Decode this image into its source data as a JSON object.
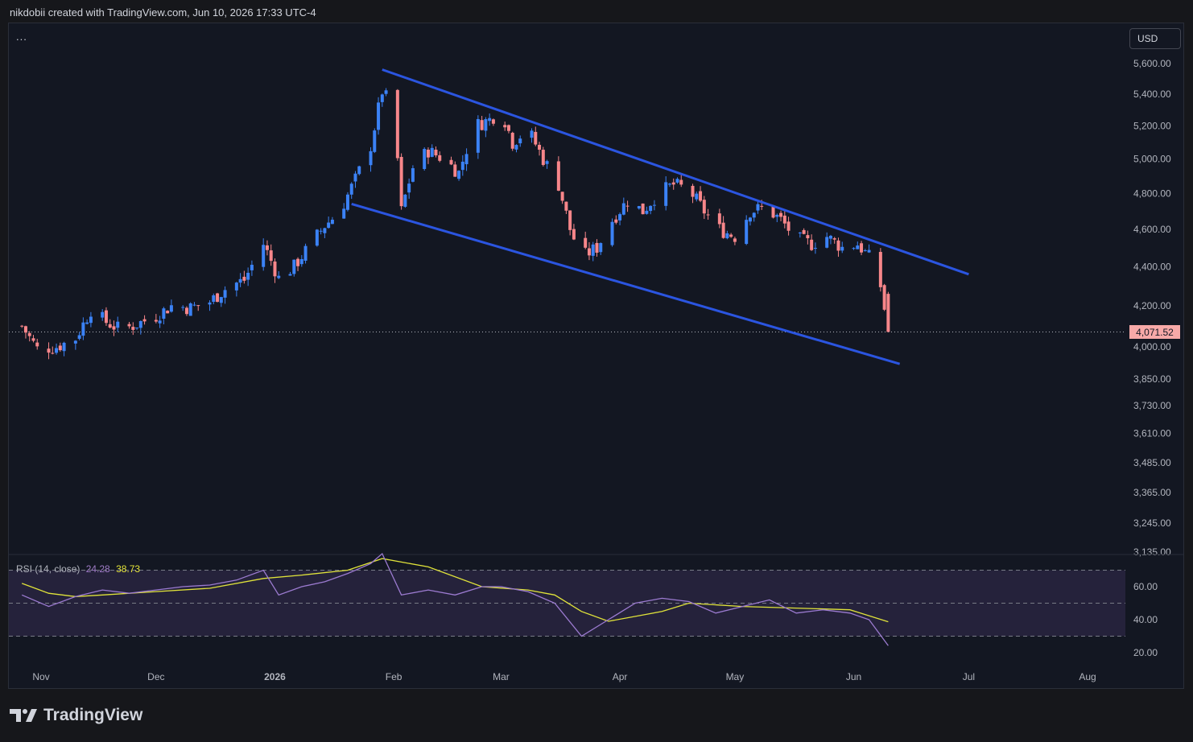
{
  "header": {
    "attribution": "nikdobii created with TradingView.com, Jun 10, 2026 17:33 UTC-4"
  },
  "toolbar": {
    "menu_label": "...",
    "currency_label": "USD"
  },
  "price_badge": {
    "value_label": "4,071.52"
  },
  "rsi_panel": {
    "name": "RSI (14, close)",
    "rsi_value": "24.28",
    "ma_value": "38.73"
  },
  "footer": {
    "brand": "TradingView"
  },
  "colors": {
    "background": "#131722",
    "up_candle": "#3b82f6",
    "down_candle": "#f7868a",
    "channel_line": "#2b55e0",
    "rsi_line": "#9c7bd1",
    "rsi_ma_line": "#e0e33a",
    "rsi_band": "#2a2542"
  },
  "chart_data": {
    "type": "candlestick",
    "price_axis": {
      "ticks": [
        5600,
        5400,
        5200,
        5000,
        4800,
        4600,
        4400,
        4200,
        4000,
        3850,
        3730,
        3610,
        3485,
        3365,
        3245,
        3135
      ],
      "tick_labels": [
        "5,600.00",
        "5,400.00",
        "5,200.00",
        "5,000.00",
        "4,800.00",
        "4,600.00",
        "4,400.00",
        "4,200.00",
        "4,000.00",
        "3,850.00",
        "3,730.00",
        "3,610.00",
        "3,485.00",
        "3,365.00",
        "3,245.00",
        "3,135.00"
      ],
      "scale": "log"
    },
    "time_axis": {
      "labels": [
        "Nov",
        "Dec",
        "2026",
        "Feb",
        "Mar",
        "Apr",
        "May",
        "Jun",
        "Jul",
        "Aug"
      ],
      "dates": [
        "2025-11-01",
        "2025-12-01",
        "2026-01-01",
        "2026-02-01",
        "2026-03-01",
        "2026-04-01",
        "2026-05-01",
        "2026-06-01",
        "2026-07-01",
        "2026-08-01"
      ]
    },
    "last_price": 4071.52,
    "close_path": [
      [
        "2025-10-27",
        4100
      ],
      [
        "2025-10-31",
        3990
      ],
      [
        "2025-11-05",
        4000
      ],
      [
        "2025-11-10",
        4040
      ],
      [
        "2025-11-14",
        4180
      ],
      [
        "2025-11-18",
        4120
      ],
      [
        "2025-11-22",
        4080
      ],
      [
        "2025-11-26",
        4110
      ],
      [
        "2025-12-01",
        4150
      ],
      [
        "2025-12-05",
        4200
      ],
      [
        "2025-12-10",
        4190
      ],
      [
        "2025-12-15",
        4220
      ],
      [
        "2025-12-20",
        4300
      ],
      [
        "2025-12-24",
        4330
      ],
      [
        "2025-12-29",
        4520
      ],
      [
        "2026-01-02",
        4340
      ],
      [
        "2026-01-06",
        4400
      ],
      [
        "2026-01-10",
        4510
      ],
      [
        "2026-01-14",
        4620
      ],
      [
        "2026-01-18",
        4700
      ],
      [
        "2026-01-22",
        4880
      ],
      [
        "2026-01-26",
        5080
      ],
      [
        "2026-01-29",
        5420
      ],
      [
        "2026-02-01",
        5300
      ],
      [
        "2026-02-03",
        4700
      ],
      [
        "2026-02-06",
        4950
      ],
      [
        "2026-02-10",
        5050
      ],
      [
        "2026-02-14",
        5000
      ],
      [
        "2026-02-18",
        4920
      ],
      [
        "2026-02-22",
        5200
      ],
      [
        "2026-02-26",
        5240
      ],
      [
        "2026-03-01",
        5300
      ],
      [
        "2026-03-04",
        5100
      ],
      [
        "2026-03-08",
        5180
      ],
      [
        "2026-03-12",
        5000
      ],
      [
        "2026-03-16",
        4850
      ],
      [
        "2026-03-19",
        4600
      ],
      [
        "2026-03-22",
        4450
      ],
      [
        "2026-03-26",
        4500
      ],
      [
        "2026-03-30",
        4650
      ],
      [
        "2026-04-03",
        4760
      ],
      [
        "2026-04-07",
        4700
      ],
      [
        "2026-04-11",
        4800
      ],
      [
        "2026-04-15",
        4850
      ],
      [
        "2026-04-19",
        4820
      ],
      [
        "2026-04-23",
        4700
      ],
      [
        "2026-04-27",
        4600
      ],
      [
        "2026-05-01",
        4560
      ],
      [
        "2026-05-05",
        4700
      ],
      [
        "2026-05-09",
        4720
      ],
      [
        "2026-05-13",
        4650
      ],
      [
        "2026-05-17",
        4550
      ],
      [
        "2026-05-21",
        4520
      ],
      [
        "2026-05-25",
        4560
      ],
      [
        "2026-05-29",
        4500
      ],
      [
        "2026-06-02",
        4520
      ],
      [
        "2026-06-05",
        4450
      ],
      [
        "2026-06-08",
        4300
      ],
      [
        "2026-06-10",
        4071.52
      ]
    ],
    "annotations": {
      "channel_upper": [
        [
          "2026-01-29",
          5560
        ],
        [
          "2026-07-01",
          4360
        ]
      ],
      "channel_lower": [
        [
          "2026-01-21",
          4740
        ],
        [
          "2026-06-13",
          3920
        ]
      ]
    },
    "rsi": {
      "name": "RSI (14, close)",
      "value": 24.28,
      "ma_value": 38.73,
      "axis_ticks": [
        60,
        40,
        20
      ],
      "axis_tick_labels": [
        "60.00",
        "40.00",
        "20.00"
      ],
      "bands": [
        70,
        50,
        30
      ],
      "values": [
        [
          "2025-10-27",
          55
        ],
        [
          "2025-11-03",
          48
        ],
        [
          "2025-11-10",
          54
        ],
        [
          "2025-11-17",
          58
        ],
        [
          "2025-11-24",
          56
        ],
        [
          "2025-12-01",
          58
        ],
        [
          "2025-12-08",
          60
        ],
        [
          "2025-12-15",
          61
        ],
        [
          "2025-12-22",
          64
        ],
        [
          "2025-12-29",
          70
        ],
        [
          "2026-01-02",
          55
        ],
        [
          "2026-01-08",
          60
        ],
        [
          "2026-01-14",
          63
        ],
        [
          "2026-01-20",
          68
        ],
        [
          "2026-01-26",
          74
        ],
        [
          "2026-01-29",
          80
        ],
        [
          "2026-02-03",
          55
        ],
        [
          "2026-02-10",
          58
        ],
        [
          "2026-02-17",
          55
        ],
        [
          "2026-02-24",
          60
        ],
        [
          "2026-03-01",
          60
        ],
        [
          "2026-03-08",
          57
        ],
        [
          "2026-03-15",
          50
        ],
        [
          "2026-03-22",
          30
        ],
        [
          "2026-03-29",
          40
        ],
        [
          "2026-04-05",
          50
        ],
        [
          "2026-04-12",
          53
        ],
        [
          "2026-04-19",
          51
        ],
        [
          "2026-04-26",
          44
        ],
        [
          "2026-05-03",
          48
        ],
        [
          "2026-05-10",
          52
        ],
        [
          "2026-05-17",
          44
        ],
        [
          "2026-05-24",
          46
        ],
        [
          "2026-05-31",
          44
        ],
        [
          "2026-06-05",
          40
        ],
        [
          "2026-06-10",
          24.28
        ]
      ],
      "ma_values": [
        [
          "2025-10-27",
          62
        ],
        [
          "2025-11-03",
          56
        ],
        [
          "2025-11-10",
          54
        ],
        [
          "2025-11-17",
          55
        ],
        [
          "2025-12-01",
          57
        ],
        [
          "2025-12-15",
          59
        ],
        [
          "2025-12-29",
          65
        ],
        [
          "2026-01-08",
          67
        ],
        [
          "2026-01-20",
          70
        ],
        [
          "2026-01-29",
          77
        ],
        [
          "2026-02-10",
          72
        ],
        [
          "2026-02-24",
          60
        ],
        [
          "2026-03-08",
          58
        ],
        [
          "2026-03-15",
          55
        ],
        [
          "2026-03-22",
          45
        ],
        [
          "2026-03-29",
          39
        ],
        [
          "2026-04-12",
          45
        ],
        [
          "2026-04-19",
          50
        ],
        [
          "2026-05-03",
          48
        ],
        [
          "2026-05-17",
          47
        ],
        [
          "2026-05-31",
          46
        ],
        [
          "2026-06-10",
          38.73
        ]
      ]
    }
  }
}
